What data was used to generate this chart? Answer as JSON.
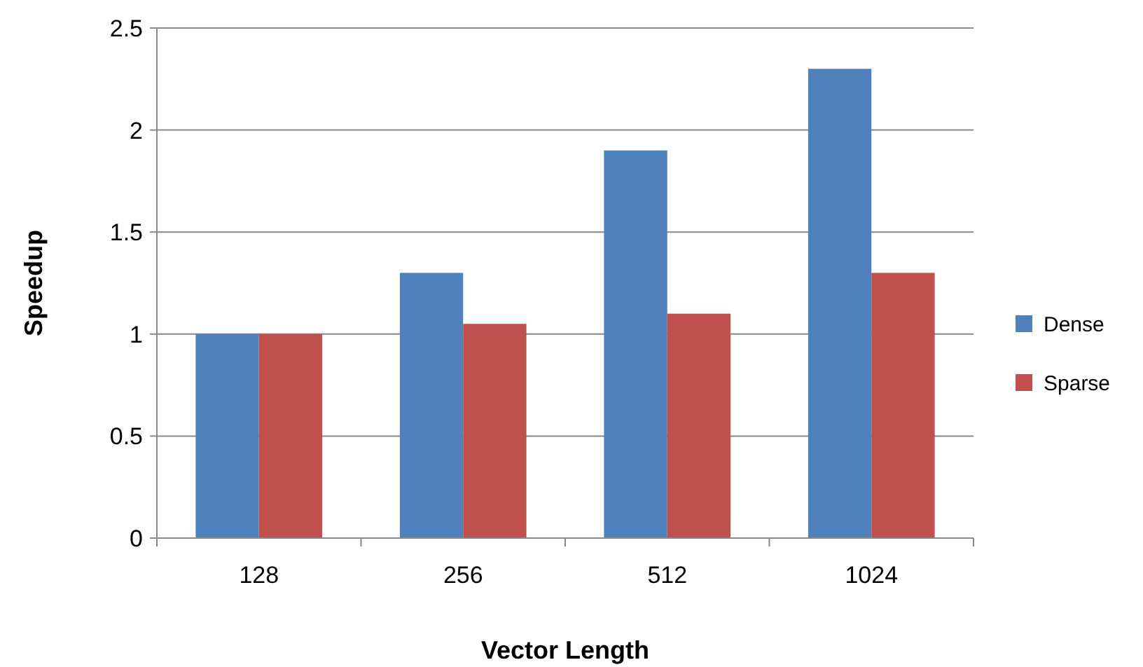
{
  "chart_data": {
    "type": "bar",
    "xlabel": "Vector Length",
    "ylabel": "Speedup",
    "categories": [
      "128",
      "256",
      "512",
      "1024"
    ],
    "series": [
      {
        "name": "Dense",
        "color": "#4f81bd",
        "values": [
          1,
          1.3,
          1.9,
          2.3
        ]
      },
      {
        "name": "Sparse",
        "color": "#c0504d",
        "values": [
          1,
          1.05,
          1.1,
          1.3
        ]
      }
    ],
    "ylim": [
      0,
      2.5
    ],
    "yticks": [
      0,
      0.5,
      1,
      1.5,
      2,
      2.5
    ],
    "grid": "y",
    "legend": "right"
  }
}
